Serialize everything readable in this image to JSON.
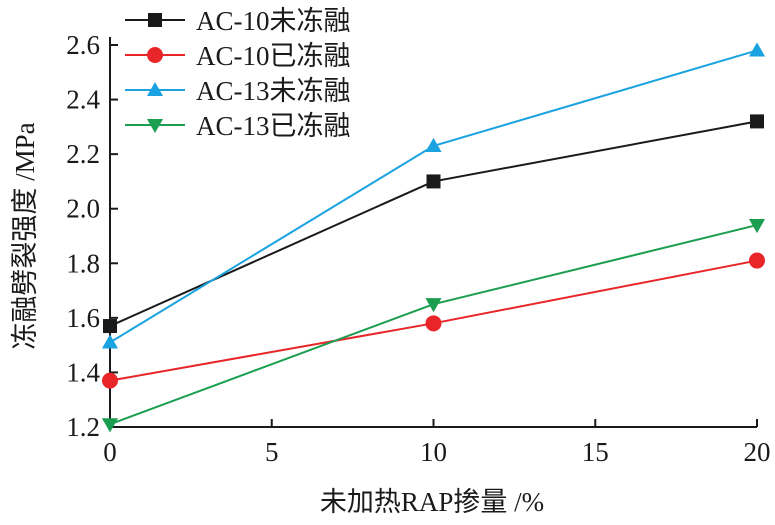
{
  "chart_data": {
    "type": "line",
    "title": "",
    "xlabel": "未加热RAP掺量 /%",
    "ylabel": "冻融劈裂强度 /MPa",
    "x": [
      0,
      10,
      20
    ],
    "xlim": [
      0,
      20
    ],
    "ylim": [
      1.2,
      2.6
    ],
    "x_ticks": [
      "0",
      "5",
      "10",
      "15",
      "20"
    ],
    "y_ticks": [
      "1.2",
      "1.4",
      "1.6",
      "1.8",
      "2.0",
      "2.2",
      "2.4",
      "2.6"
    ],
    "grid": false,
    "legend_position": "top-left",
    "series": [
      {
        "name": "AC-10未冻融",
        "values": [
          1.57,
          2.1,
          2.32
        ],
        "color": "#1a1a1a",
        "marker": "square"
      },
      {
        "name": "AC-10已冻融",
        "values": [
          1.37,
          1.58,
          1.81
        ],
        "color": "#e8262a",
        "marker": "circle"
      },
      {
        "name": "AC-13未冻融",
        "values": [
          1.51,
          2.23,
          2.58
        ],
        "color": "#1aa3e0",
        "marker": "triangle-up"
      },
      {
        "name": "AC-13已冻融",
        "values": [
          1.21,
          1.65,
          1.94
        ],
        "color": "#1b9e50",
        "marker": "triangle-down"
      }
    ]
  }
}
